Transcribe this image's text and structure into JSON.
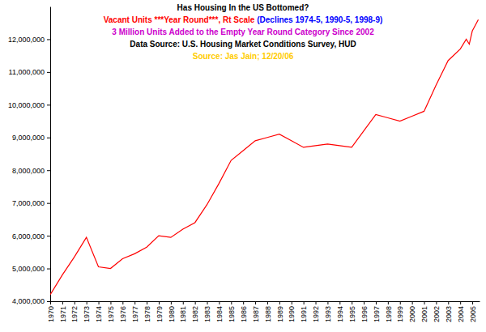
{
  "chart_data": {
    "type": "line",
    "title": "Has Housing In the US Bottomed?",
    "annotations": [
      [
        {
          "text": "Vacant Units ***Year Round***, Rt Scale",
          "color": "#ff0000"
        },
        {
          "text": "(Declines 1974-5, 1990-5, 1998-9)",
          "color": "#0000ff"
        }
      ],
      [
        {
          "text": "3 Million Units Added to the Empty Year Round Category Since 2002",
          "color": "#cc00cc"
        }
      ],
      [
        {
          "text": "Data Source: U.S. Housing Market Conditions Survey, HUD",
          "color": "#000000"
        }
      ],
      [
        {
          "text": "Source: Jas Jain; 12/20/06",
          "color": "#ffcc00"
        }
      ]
    ],
    "color": "#ff0000",
    "x": [
      1970,
      1971,
      1972,
      1973,
      1974,
      1975,
      1976,
      1977,
      1978,
      1979,
      1980,
      1981,
      1982,
      1983,
      1984,
      1985,
      1986,
      1987,
      1988,
      1989,
      1990,
      1991,
      1992,
      1993,
      1994,
      1995,
      1996,
      1997,
      1998,
      1999,
      2000,
      2001,
      2002,
      2003,
      2004,
      2004.5,
      2004.75,
      2005,
      2005.5
    ],
    "values": [
      4200000,
      4800000,
      5350000,
      5950000,
      5050000,
      5000000,
      5300000,
      5450000,
      5650000,
      6000000,
      5950000,
      6200000,
      6400000,
      6950000,
      7600000,
      8300000,
      8600000,
      8900000,
      9000000,
      9100000,
      8900000,
      8700000,
      8750000,
      8800000,
      8750000,
      8700000,
      9200000,
      9700000,
      9600000,
      9500000,
      9650000,
      9800000,
      10600000,
      11350000,
      11700000,
      12000000,
      11850000,
      12250000,
      12600000
    ],
    "xlim": [
      1970,
      2005.6
    ],
    "xticks": [
      1970,
      1971,
      1972,
      1973,
      1974,
      1975,
      1976,
      1977,
      1978,
      1979,
      1980,
      1981,
      1982,
      1983,
      1984,
      1985,
      1986,
      1987,
      1988,
      1989,
      1990,
      1991,
      1992,
      1993,
      1994,
      1995,
      1996,
      1997,
      1998,
      1999,
      2000,
      2001,
      2002,
      2003,
      2004,
      2005
    ],
    "ylim": [
      4000000,
      13000000
    ],
    "yticks": [
      {
        "value": 4000000,
        "label": "4,000,000"
      },
      {
        "value": 5000000,
        "label": "5,000,000"
      },
      {
        "value": 6000000,
        "label": "6,000,000"
      },
      {
        "value": 7000000,
        "label": "7,000,000"
      },
      {
        "value": 8000000,
        "label": "8,000,000"
      },
      {
        "value": 9000000,
        "label": "9,000,000"
      },
      {
        "value": 10000000,
        "label": "10,000,000"
      },
      {
        "value": 11000000,
        "label": "11,000,000"
      },
      {
        "value": 12000000,
        "label": "12,000,000"
      }
    ],
    "grid": false
  }
}
